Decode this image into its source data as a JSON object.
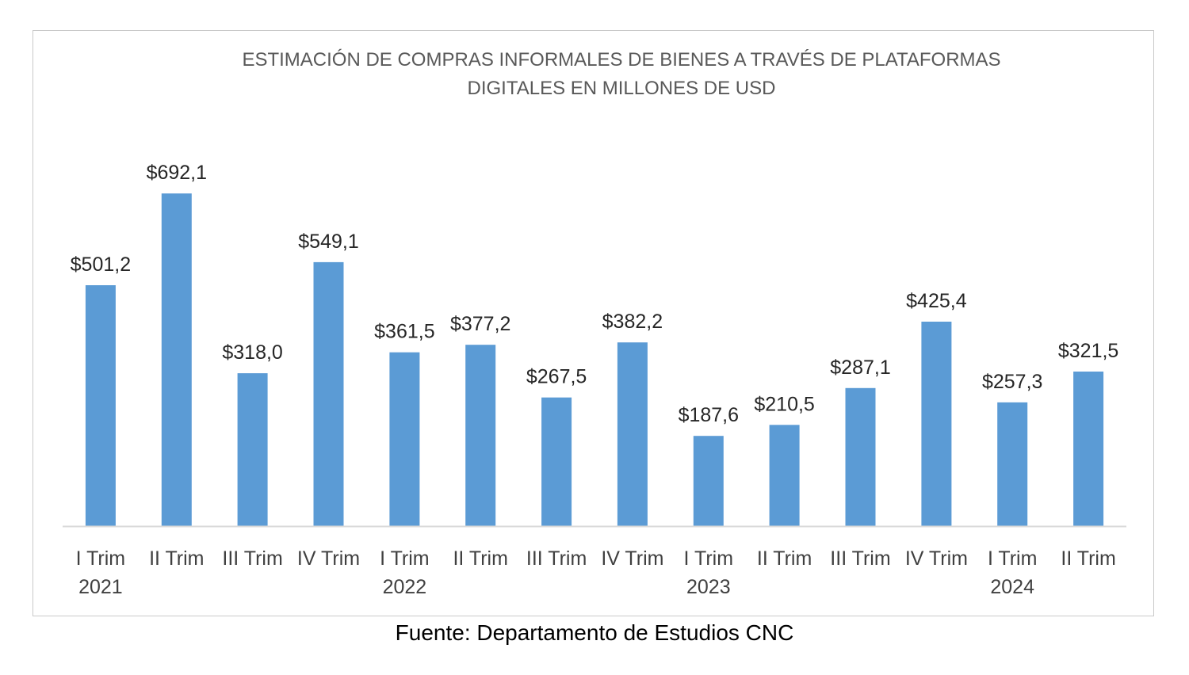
{
  "colors": {
    "bar": "#5b9bd5",
    "axis": "#d9d9d9",
    "frame": "#c9c9c9"
  },
  "source": "Fuente: Departamento de Estudios CNC",
  "chart_data": {
    "type": "bar",
    "title_lines": [
      "ESTIMACIÓN DE COMPRAS INFORMALES DE BIENES A TRAVÉS DE PLATAFORMAS",
      "DIGITALES EN MILLONES DE USD"
    ],
    "categories": [
      [
        "I Trim",
        "2021"
      ],
      [
        "II Trim",
        ""
      ],
      [
        "III Trim",
        ""
      ],
      [
        "IV Trim",
        ""
      ],
      [
        "I Trim",
        "2022"
      ],
      [
        "II Trim",
        ""
      ],
      [
        "III Trim",
        ""
      ],
      [
        "IV Trim",
        ""
      ],
      [
        "I Trim",
        "2023"
      ],
      [
        "II Trim",
        ""
      ],
      [
        "III Trim",
        ""
      ],
      [
        "IV Trim",
        ""
      ],
      [
        "I Trim",
        "2024"
      ],
      [
        "II Trim",
        ""
      ]
    ],
    "values": [
      501.2,
      692.1,
      318.0,
      549.1,
      361.5,
      377.2,
      267.5,
      382.2,
      187.6,
      210.5,
      287.1,
      425.4,
      257.3,
      321.5
    ],
    "value_labels": [
      "$501,2",
      "$692,1",
      "$318,0",
      "$549,1",
      "$361,5",
      "$377,2",
      "$267,5",
      "$382,2",
      "$187,6",
      "$210,5",
      "$287,1",
      "$425,4",
      "$257,3",
      "$321,5"
    ],
    "ylim": [
      0,
      700
    ],
    "grid": false,
    "legend": "none"
  }
}
